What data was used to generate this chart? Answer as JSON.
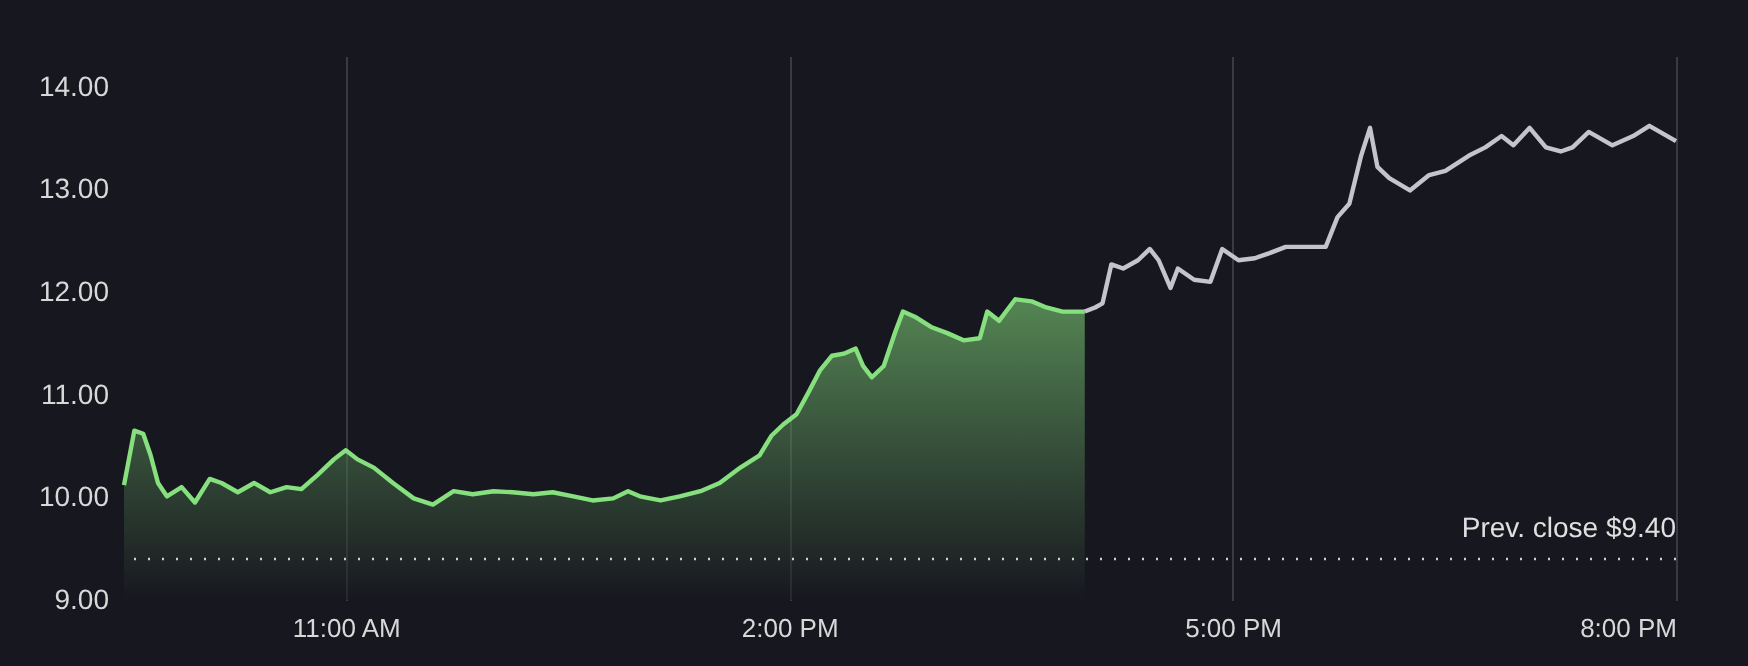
{
  "chart_data": {
    "type": "line",
    "xlim": [
      9.5,
      20
    ],
    "ylim": [
      9,
      14.3
    ],
    "xticks": [
      {
        "value": 11,
        "label": "11:00 AM"
      },
      {
        "value": 14,
        "label": "2:00 PM"
      },
      {
        "value": 17,
        "label": "5:00 PM"
      },
      {
        "value": 20,
        "label": "8:00 PM"
      }
    ],
    "yticks": [
      {
        "value": 9,
        "label": "9.00"
      },
      {
        "value": 10,
        "label": "10.00"
      },
      {
        "value": 11,
        "label": "11.00"
      },
      {
        "value": 12,
        "label": "12.00"
      },
      {
        "value": 13,
        "label": "13.00"
      },
      {
        "value": 14,
        "label": "14.00"
      }
    ],
    "grid": "x",
    "series": [
      {
        "type": "area",
        "color": "#86e07e",
        "x": [
          9.5,
          9.57,
          9.63,
          9.68,
          9.73,
          9.79,
          9.89,
          9.98,
          10.08,
          10.16,
          10.27,
          10.38,
          10.49,
          10.6,
          10.7,
          10.81,
          10.92,
          11.0,
          11.08,
          11.19,
          11.32,
          11.46,
          11.59,
          11.73,
          11.86,
          12.0,
          12.13,
          12.27,
          12.4,
          12.54,
          12.67,
          12.81,
          12.91,
          12.99,
          13.13,
          13.26,
          13.4,
          13.53,
          13.67,
          13.8,
          13.88,
          13.96,
          14.05,
          14.13,
          14.21,
          14.29,
          14.37,
          14.45,
          14.5,
          14.56,
          14.64,
          14.72,
          14.77,
          14.85,
          14.96,
          15.07,
          15.18,
          15.29,
          15.34,
          15.42,
          15.53,
          15.64,
          15.74,
          15.85,
          16.0
        ],
        "values": [
          10.12,
          10.65,
          10.62,
          10.41,
          10.14,
          10.01,
          10.1,
          9.95,
          10.18,
          10.14,
          10.05,
          10.14,
          10.05,
          10.1,
          10.08,
          10.22,
          10.37,
          10.46,
          10.37,
          10.29,
          10.14,
          9.99,
          9.93,
          10.06,
          10.03,
          10.06,
          10.05,
          10.03,
          10.05,
          10.01,
          9.97,
          9.99,
          10.06,
          10.01,
          9.97,
          10.01,
          10.06,
          10.14,
          10.29,
          10.41,
          10.6,
          10.71,
          10.81,
          11.02,
          11.24,
          11.38,
          11.4,
          11.45,
          11.28,
          11.17,
          11.28,
          11.62,
          11.81,
          11.76,
          11.66,
          11.6,
          11.53,
          11.55,
          11.81,
          11.72,
          11.93,
          11.91,
          11.85,
          11.81,
          11.81
        ]
      },
      {
        "color": "#c4c4cc",
        "x": [
          16.0,
          16.07,
          16.12,
          16.18,
          16.26,
          16.36,
          16.44,
          16.5,
          16.58,
          16.63,
          16.74,
          16.85,
          16.93,
          17.04,
          17.15,
          17.25,
          17.36,
          17.63,
          17.71,
          17.79,
          17.87,
          17.93,
          17.98,
          18.06,
          18.2,
          18.33,
          18.44,
          18.6,
          18.71,
          18.82,
          18.9,
          19.01,
          19.12,
          19.22,
          19.3,
          19.41,
          19.57,
          19.71,
          19.82,
          20.0
        ],
        "values": [
          11.81,
          11.85,
          11.89,
          12.27,
          12.23,
          12.31,
          12.42,
          12.31,
          12.04,
          12.23,
          12.12,
          12.1,
          12.42,
          12.31,
          12.33,
          12.38,
          12.44,
          12.44,
          12.73,
          12.86,
          13.33,
          13.6,
          13.22,
          13.11,
          12.99,
          13.14,
          13.18,
          13.33,
          13.41,
          13.52,
          13.43,
          13.6,
          13.41,
          13.37,
          13.41,
          13.56,
          13.43,
          13.52,
          13.62,
          13.47
        ]
      }
    ],
    "ref_lines": [
      {
        "axis": "y",
        "value": 9.4,
        "label": "Prev. close $9.40",
        "color": "#d0d0d0",
        "line_style": "dotted"
      }
    ]
  }
}
